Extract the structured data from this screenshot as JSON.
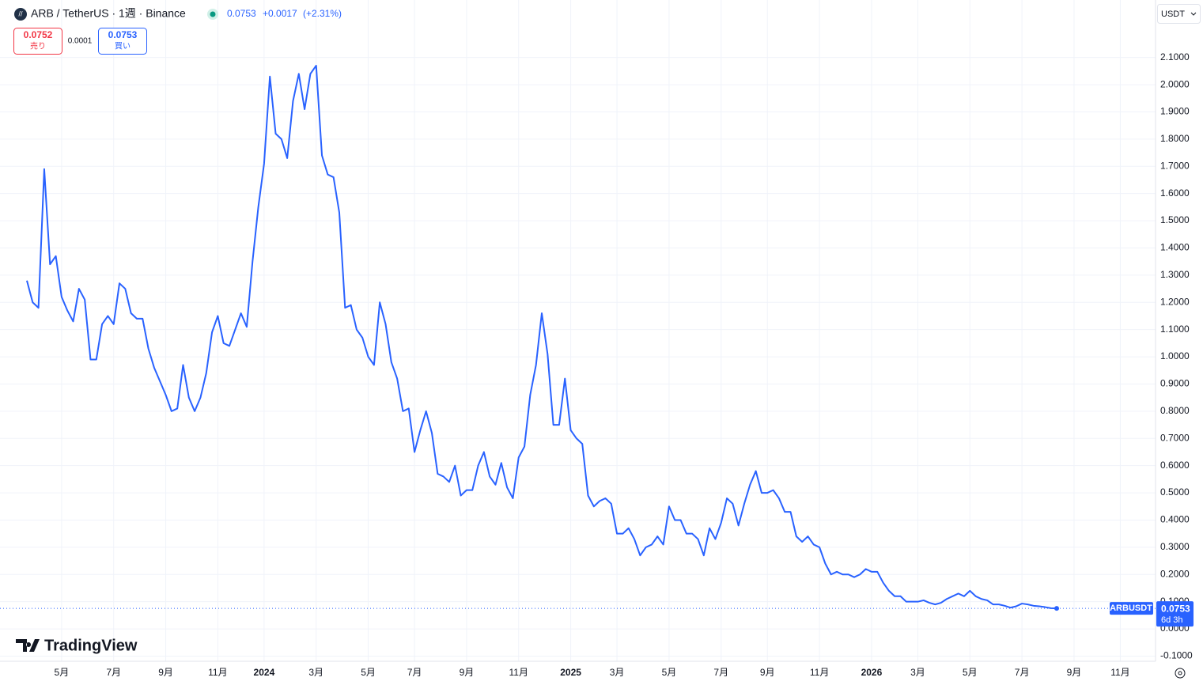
{
  "header": {
    "symbol_title": "ARB / TetherUS · 1週 · Binance",
    "price": "0.0753",
    "change": "+0.0017",
    "change_pct": "(+2.31%)",
    "sell_price": "0.0752",
    "sell_label": "売り",
    "spread": "0.0001",
    "buy_price": "0.0753",
    "buy_label": "買い",
    "currency": "USDT",
    "countdown": "6d 3h",
    "brand": "TradingView"
  },
  "chart_data": {
    "type": "line",
    "title": "ARB / TetherUS · 1週 · Binance",
    "categories": [
      null,
      null,
      null,
      null,
      null,
      null,
      "5月",
      null,
      null,
      null,
      null,
      null,
      null,
      null,
      null,
      "7月",
      null,
      null,
      null,
      null,
      null,
      null,
      null,
      null,
      "9月",
      null,
      null,
      null,
      null,
      null,
      null,
      null,
      null,
      "11月",
      null,
      null,
      null,
      null,
      null,
      null,
      null,
      "2024",
      null,
      null,
      null,
      null,
      null,
      null,
      null,
      null,
      "3月",
      null,
      null,
      null,
      null,
      null,
      null,
      null,
      null,
      "5月",
      null,
      null,
      null,
      null,
      null,
      null,
      null,
      "7月",
      null,
      null,
      null,
      null,
      null,
      null,
      null,
      null,
      "9月",
      null,
      null,
      null,
      null,
      null,
      null,
      null,
      null,
      "11月",
      null,
      null,
      null,
      null,
      null,
      null,
      null,
      null,
      "2025",
      null,
      null,
      null,
      null,
      null,
      null,
      null,
      "3月",
      null,
      null,
      null,
      null,
      null,
      null,
      null,
      null,
      "5月",
      null,
      null,
      null,
      null,
      null,
      null,
      null,
      null,
      "7月",
      null,
      null,
      null,
      null,
      null,
      null,
      null,
      "9月",
      null,
      null,
      null,
      null,
      null,
      null,
      null,
      null,
      "11月",
      null,
      null,
      null,
      null,
      null,
      null,
      null,
      null,
      "2026",
      null,
      null,
      null,
      null,
      null,
      null,
      null,
      "3月",
      null,
      null,
      null,
      null,
      null,
      null,
      null,
      null,
      "5月",
      null,
      null,
      null,
      null,
      null,
      null,
      null,
      null,
      "7月",
      null,
      null,
      null,
      null,
      null,
      null,
      null,
      null,
      "9月",
      null,
      null,
      null,
      null,
      null,
      null,
      null,
      "11月",
      null,
      null,
      null,
      null,
      null
    ],
    "series": [
      {
        "name": "ARBUSDT",
        "color": "#2962ff",
        "values": [
          1.28,
          1.2,
          1.18,
          1.69,
          1.34,
          1.37,
          1.22,
          1.17,
          1.13,
          1.25,
          1.21,
          0.99,
          0.99,
          1.12,
          1.15,
          1.12,
          1.27,
          1.25,
          1.16,
          1.14,
          1.14,
          1.03,
          0.96,
          0.91,
          0.86,
          0.8,
          0.81,
          0.97,
          0.85,
          0.8,
          0.85,
          0.94,
          1.09,
          1.15,
          1.05,
          1.04,
          1.1,
          1.16,
          1.11,
          1.35,
          1.55,
          1.71,
          2.03,
          1.82,
          1.8,
          1.73,
          1.94,
          2.04,
          1.91,
          2.04,
          2.07,
          1.74,
          1.67,
          1.66,
          1.53,
          1.18,
          1.19,
          1.1,
          1.07,
          1.0,
          0.97,
          1.2,
          1.12,
          0.98,
          0.92,
          0.8,
          0.81,
          0.65,
          0.73,
          0.8,
          0.72,
          0.57,
          0.56,
          0.54,
          0.6,
          0.49,
          0.51,
          0.51,
          0.6,
          0.65,
          0.56,
          0.53,
          0.61,
          0.52,
          0.48,
          0.63,
          0.67,
          0.86,
          0.97,
          1.16,
          1.01,
          0.75,
          0.75,
          0.92,
          0.73,
          0.7,
          0.68,
          0.49,
          0.45,
          0.47,
          0.48,
          0.46,
          0.35,
          0.35,
          0.37,
          0.33,
          0.27,
          0.3,
          0.31,
          0.34,
          0.31,
          0.45,
          0.4,
          0.4,
          0.35,
          0.35,
          0.33,
          0.27,
          0.37,
          0.33,
          0.39,
          0.48,
          0.46,
          0.38,
          0.46,
          0.53,
          0.58,
          0.5,
          0.5,
          0.51,
          0.48,
          0.43,
          0.43,
          0.34,
          0.32,
          0.34,
          0.31,
          0.3,
          0.24,
          0.2,
          0.21,
          0.2,
          0.2,
          0.19,
          0.2,
          0.22,
          0.21,
          0.21,
          0.17,
          0.14,
          0.12,
          0.12,
          0.1,
          0.1,
          0.1,
          0.105,
          0.096,
          0.09,
          0.096,
          0.11,
          0.12,
          0.13,
          0.12,
          0.14,
          0.12,
          0.11,
          0.105,
          0.09,
          0.09,
          0.085,
          0.078,
          0.083,
          0.093,
          0.09,
          0.085,
          0.083,
          0.08,
          0.076,
          0.0753,
          null,
          null,
          null,
          null,
          null,
          null,
          null,
          null,
          null,
          null,
          null,
          null,
          null,
          null,
          null,
          null
        ]
      }
    ],
    "ylim": [
      -0.119,
      2.195
    ],
    "yticks": [
      {
        "value": -0.1,
        "label": "-0.1000"
      },
      {
        "value": 0,
        "label": "0.0000"
      },
      {
        "value": 0.1,
        "label": "0.1000"
      },
      {
        "value": 0.2,
        "label": "0.2000"
      },
      {
        "value": 0.3,
        "label": "0.3000"
      },
      {
        "value": 0.4,
        "label": "0.4000"
      },
      {
        "value": 0.5,
        "label": "0.5000"
      },
      {
        "value": 0.6,
        "label": "0.6000"
      },
      {
        "value": 0.7,
        "label": "0.7000"
      },
      {
        "value": 0.8,
        "label": "0.8000"
      },
      {
        "value": 0.9,
        "label": "0.9000"
      },
      {
        "value": 1,
        "label": "1.0000"
      },
      {
        "value": 1.1,
        "label": "1.1000"
      },
      {
        "value": 1.2,
        "label": "1.2000"
      },
      {
        "value": 1.3,
        "label": "1.3000"
      },
      {
        "value": 1.4,
        "label": "1.4000"
      },
      {
        "value": 1.5,
        "label": "1.5000"
      },
      {
        "value": 1.6,
        "label": "1.6000"
      },
      {
        "value": 1.7,
        "label": "1.7000"
      },
      {
        "value": 1.8,
        "label": "1.8000"
      },
      {
        "value": 1.9,
        "label": "1.9000"
      },
      {
        "value": 2,
        "label": "2.0000"
      },
      {
        "value": 2.1,
        "label": "2.1000"
      }
    ],
    "grid": true
  }
}
